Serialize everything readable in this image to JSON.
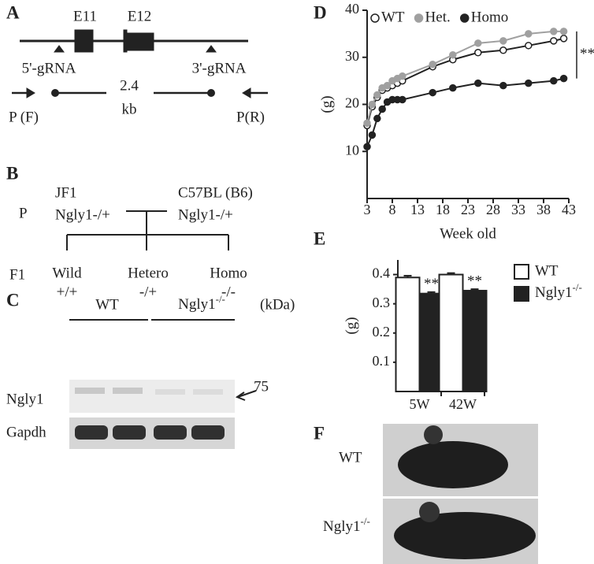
{
  "panel_labels": [
    "A",
    "B",
    "C",
    "D",
    "E",
    "F"
  ],
  "gene_diagram": {
    "exons": [
      "E11",
      "E12"
    ],
    "grnas": [
      "5'-gRNA",
      "3'-gRNA"
    ],
    "size": [
      "2.4",
      "kb"
    ],
    "primers": [
      "P (F)",
      "P(R)"
    ]
  },
  "cross": {
    "generation_labels": [
      "P",
      "F1"
    ],
    "parents": [
      [
        "JF1",
        "Ngly1-/+"
      ],
      [
        "C57BL (B6)",
        "Ngly1-/+"
      ]
    ],
    "offspring": [
      [
        "Wild",
        "+/+"
      ],
      [
        "Hetero",
        "-/+"
      ],
      [
        "Homo",
        "-/-"
      ]
    ]
  },
  "blot": {
    "groups": [
      "WT",
      {
        "base": "Ngly1",
        "sup": "-/-"
      }
    ],
    "unit": "(kDa)",
    "rows": [
      "Ngly1",
      "Gapdh"
    ],
    "marker": "75"
  },
  "photos": {
    "labels": [
      "WT",
      {
        "base": "Ngly1",
        "sup": "-/-"
      }
    ]
  },
  "chart_data": [
    {
      "type": "line",
      "x_label": "Week old",
      "y_label": "(g)",
      "annotation": "**",
      "series": [
        {
          "name": "WT",
          "color": "#222222",
          "fill": "#ffffff",
          "x": [
            3,
            4,
            5,
            6,
            7,
            8,
            9,
            10,
            16,
            20,
            25,
            30,
            35,
            40,
            42
          ],
          "values": [
            15.5,
            19.5,
            21.5,
            23,
            23.5,
            24,
            24.5,
            25,
            28,
            29.5,
            31,
            31.5,
            32.5,
            33.5,
            34
          ]
        },
        {
          "name": "Het.",
          "color": "#a0a0a0",
          "fill": "#a0a0a0",
          "x": [
            3,
            4,
            5,
            6,
            7,
            8,
            9,
            10,
            16,
            20,
            25,
            30,
            35,
            40,
            42
          ],
          "values": [
            16,
            20,
            22,
            23.5,
            24,
            25,
            25.5,
            26,
            28.5,
            30.5,
            33,
            33.5,
            35,
            35.5,
            35.5
          ]
        },
        {
          "name": "Homo",
          "color": "#222222",
          "fill": "#222222",
          "x": [
            3,
            4,
            5,
            6,
            7,
            8,
            9,
            10,
            16,
            20,
            25,
            30,
            35,
            40,
            42
          ],
          "values": [
            11,
            13.5,
            17,
            19,
            20.5,
            21,
            21,
            21,
            22.5,
            23.5,
            24.5,
            24,
            24.5,
            25,
            25.5
          ]
        }
      ],
      "xlim": [
        3,
        43
      ],
      "xticks": [
        3,
        8,
        13,
        18,
        23,
        28,
        33,
        38,
        43
      ],
      "ylim": [
        0,
        40
      ],
      "yticks": [
        10,
        20,
        30,
        40
      ]
    },
    {
      "type": "bar",
      "y_label": "(g)",
      "categories": [
        "5W",
        "42W"
      ],
      "series": [
        {
          "name": "WT",
          "color": "#ffffff",
          "values": [
            0.39,
            0.4
          ],
          "errors": [
            0.006,
            0.005
          ]
        },
        {
          "name": {
            "base": "Ngly1",
            "sup": "-/-"
          },
          "color": "#222222",
          "values": [
            0.335,
            0.345
          ],
          "errors": [
            0.005,
            0.005
          ],
          "annotations": [
            "**",
            "**"
          ]
        }
      ],
      "ylim": [
        0,
        0.45
      ],
      "yticks": [
        0.1,
        0.2,
        0.3,
        0.4
      ]
    }
  ]
}
